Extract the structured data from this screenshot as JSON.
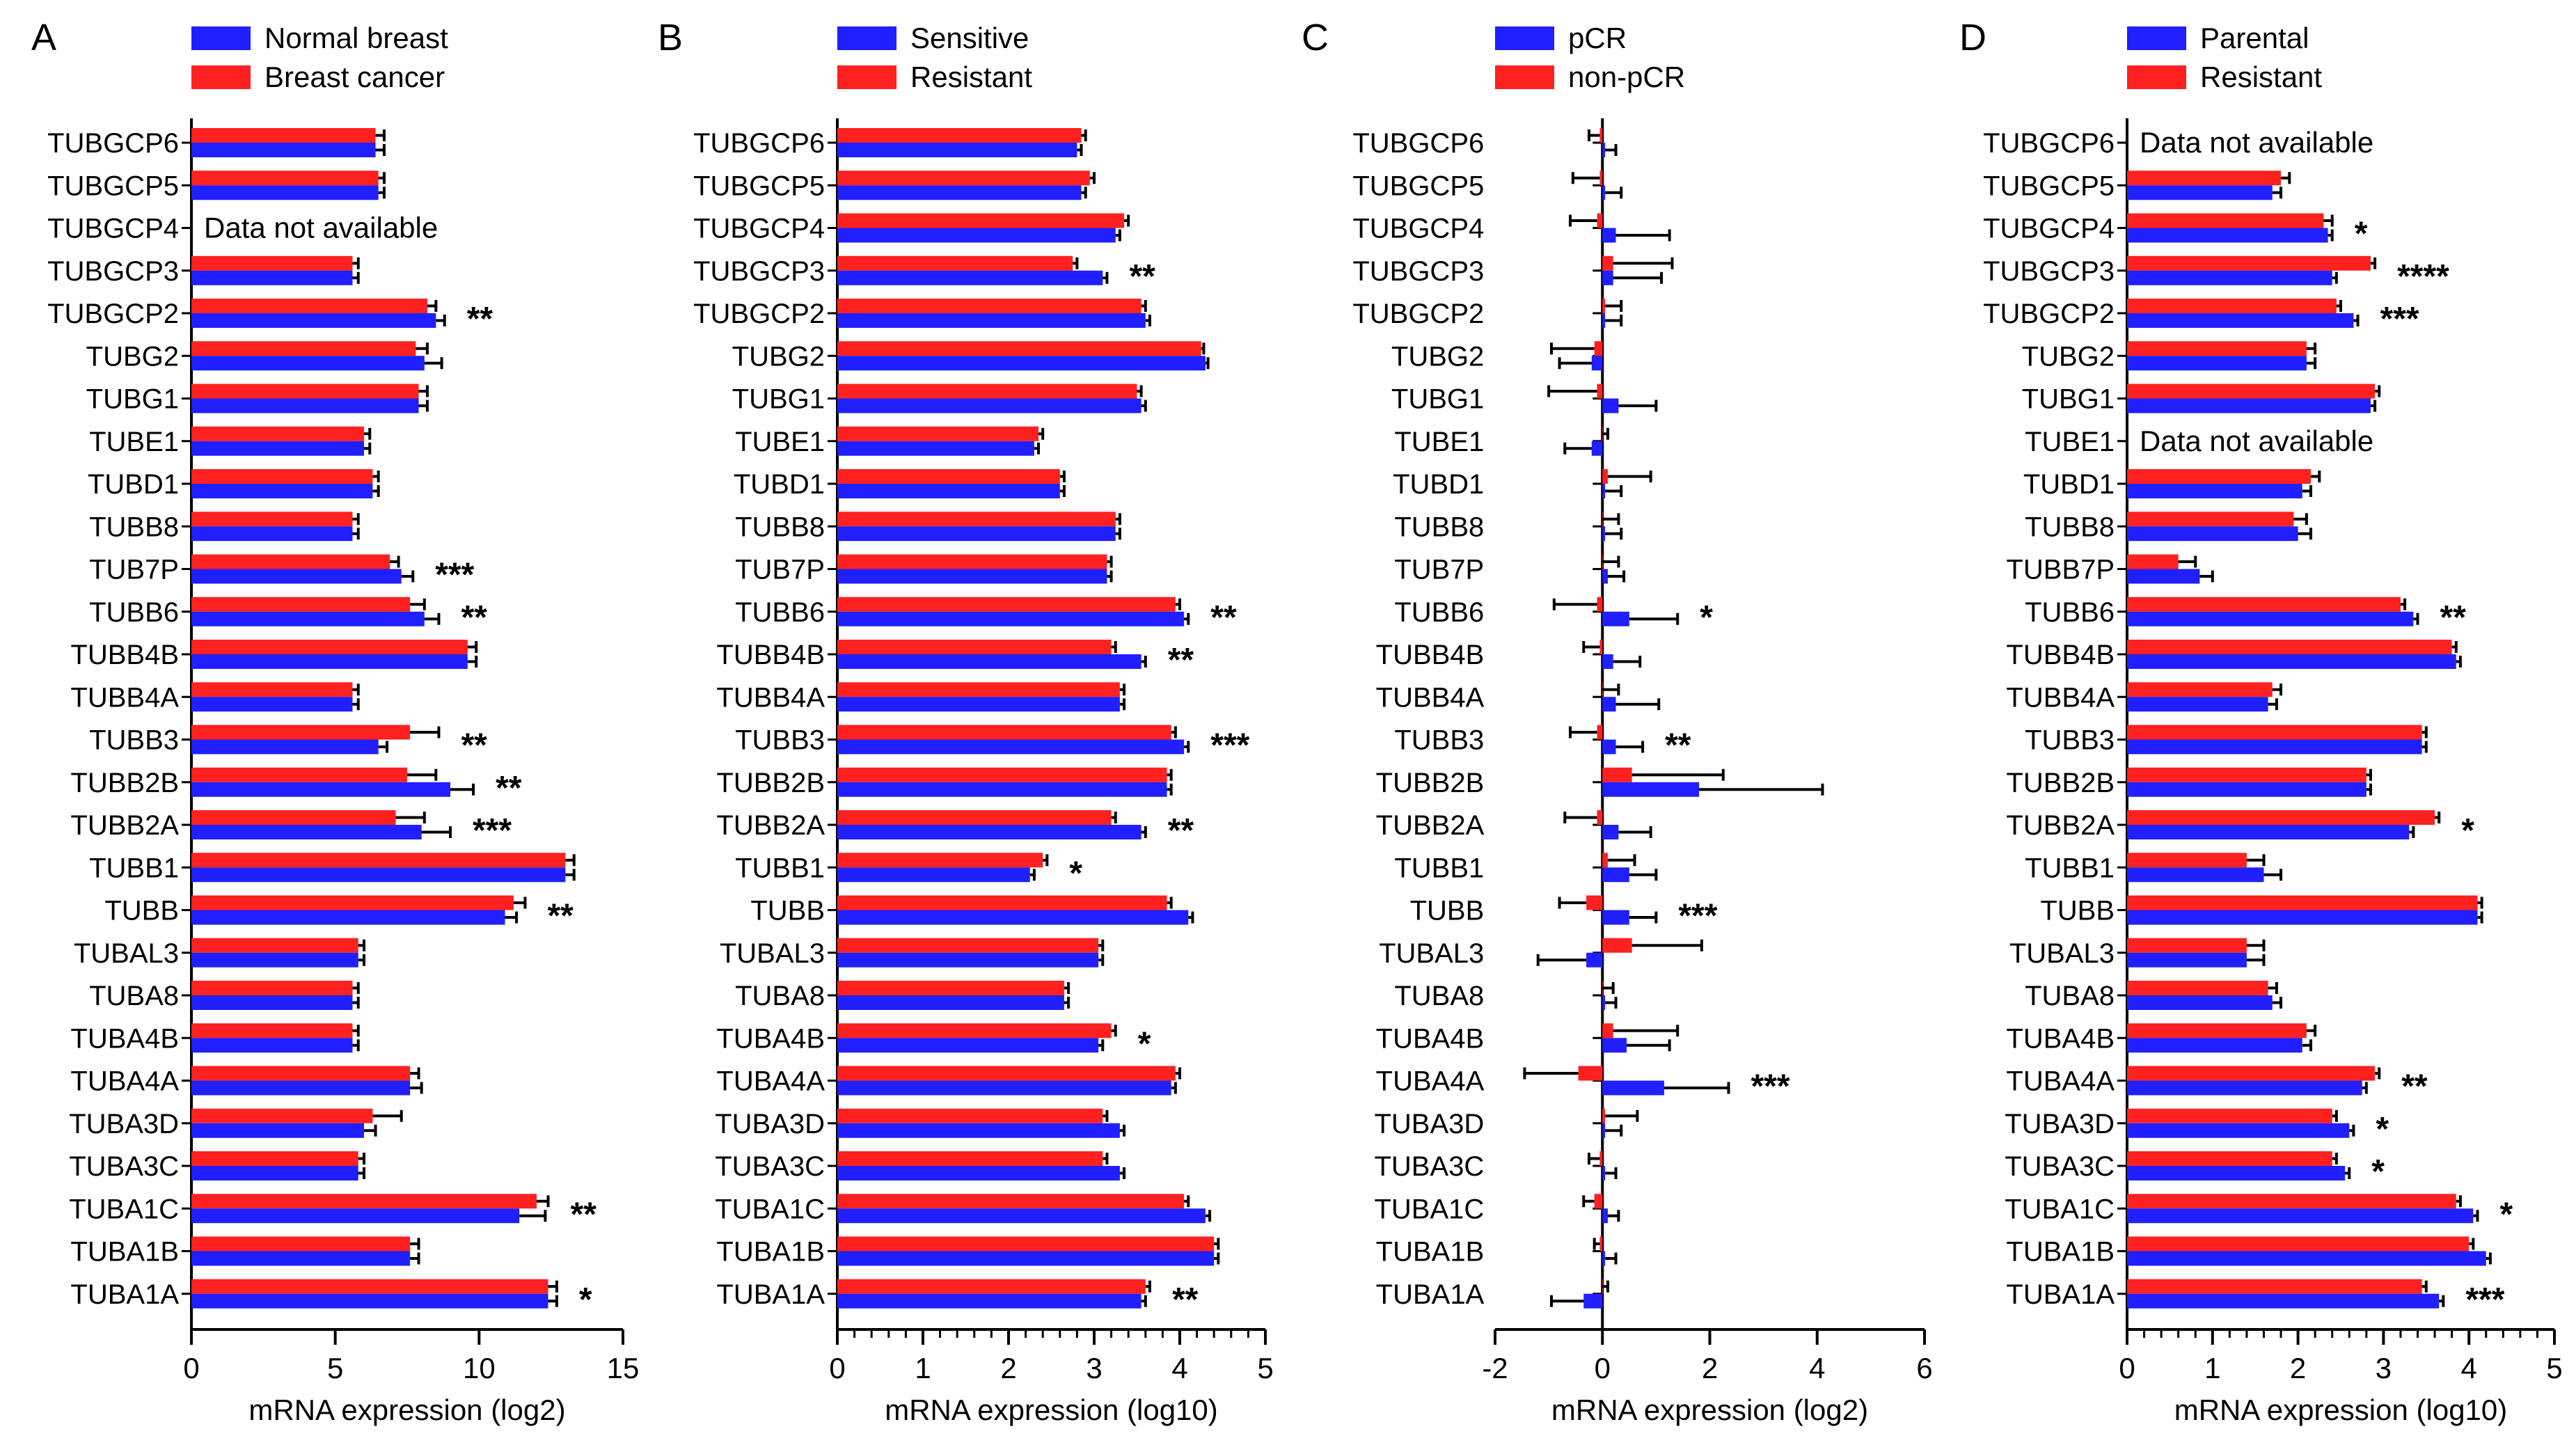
{
  "colors": {
    "blue": "#1F1FFF",
    "red": "#FF2020",
    "axis": "#000000"
  },
  "categories": [
    "TUBGCP6",
    "TUBGCP5",
    "TUBGCP4",
    "TUBGCP3",
    "TUBGCP2",
    "TUBG2",
    "TUBG1",
    "TUBE1",
    "TUBD1",
    "TUBB8",
    "TUB7P",
    "TUBB6",
    "TUBB4B",
    "TUBB4A",
    "TUBB3",
    "TUBB2B",
    "TUBB2A",
    "TUBB1",
    "TUBB",
    "TUBAL3",
    "TUBA8",
    "TUBA4B",
    "TUBA4A",
    "TUBA3D",
    "TUBA3C",
    "TUBA1C",
    "TUBA1B",
    "TUBA1A"
  ],
  "chart_data": [
    {
      "type": "bar",
      "panel": "A",
      "orientation": "horizontal",
      "xlabel": "mRNA expression (log2)",
      "xlim": [
        0,
        15
      ],
      "xticks": [
        0,
        5,
        10,
        15
      ],
      "legend": [
        "Normal breast",
        "Breast cancer"
      ],
      "categories": [
        "TUBGCP6",
        "TUBGCP5",
        "TUBGCP4",
        "TUBGCP3",
        "TUBGCP2",
        "TUBG2",
        "TUBG1",
        "TUBE1",
        "TUBD1",
        "TUBB8",
        "TUB7P",
        "TUBB6",
        "TUBB4B",
        "TUBB4A",
        "TUBB3",
        "TUBB2B",
        "TUBB2A",
        "TUBB1",
        "TUBB",
        "TUBAL3",
        "TUBA8",
        "TUBA4B",
        "TUBA4A",
        "TUBA3D",
        "TUBA3C",
        "TUBA1C",
        "TUBA1B",
        "TUBA1A"
      ],
      "series": [
        {
          "name": "Breast cancer",
          "color": "red",
          "values": [
            6.4,
            6.5,
            null,
            5.6,
            8.2,
            7.8,
            7.9,
            6.0,
            6.3,
            5.6,
            6.9,
            7.6,
            9.6,
            5.6,
            7.6,
            7.5,
            7.1,
            13.0,
            11.2,
            5.8,
            5.6,
            5.6,
            7.6,
            6.3,
            5.8,
            12.0,
            7.6,
            12.4
          ],
          "errors": [
            0.3,
            0.2,
            null,
            0.2,
            0.3,
            0.4,
            0.3,
            0.2,
            0.2,
            0.2,
            0.3,
            0.5,
            0.3,
            0.2,
            1.0,
            1.0,
            1.0,
            0.3,
            0.4,
            0.2,
            0.2,
            0.2,
            0.3,
            1.0,
            0.2,
            0.4,
            0.3,
            0.3
          ]
        },
        {
          "name": "Normal breast",
          "color": "blue",
          "values": [
            6.4,
            6.5,
            null,
            5.6,
            8.5,
            8.1,
            7.9,
            6.0,
            6.3,
            5.6,
            7.3,
            8.1,
            9.6,
            5.6,
            6.5,
            9.0,
            8.0,
            13.0,
            10.9,
            5.8,
            5.6,
            5.6,
            7.6,
            6.0,
            5.8,
            11.4,
            7.6,
            12.4
          ],
          "errors": [
            0.3,
            0.2,
            null,
            0.2,
            0.3,
            0.6,
            0.3,
            0.2,
            0.2,
            0.2,
            0.4,
            0.5,
            0.3,
            0.2,
            0.3,
            0.8,
            1.0,
            0.3,
            0.4,
            0.2,
            0.2,
            0.2,
            0.4,
            0.4,
            0.2,
            0.9,
            0.3,
            0.3
          ]
        }
      ],
      "significance": [
        "",
        "",
        "",
        "",
        "**",
        "",
        "",
        "",
        "",
        "",
        "***",
        "**",
        "",
        "",
        "**",
        "**",
        "***",
        "",
        "**",
        "",
        "",
        "",
        "",
        "",
        "",
        "**",
        "",
        "*"
      ],
      "notes": [
        {
          "category": "TUBGCP4",
          "text": "Data not available"
        }
      ]
    },
    {
      "type": "bar",
      "panel": "B",
      "orientation": "horizontal",
      "xlabel": "mRNA expression (log10)",
      "xlim": [
        0,
        5
      ],
      "xticks": [
        0,
        1,
        2,
        3,
        4,
        5
      ],
      "legend": [
        "Sensitive",
        "Resistant"
      ],
      "categories": [
        "TUBGCP6",
        "TUBGCP5",
        "TUBGCP4",
        "TUBGCP3",
        "TUBGCP2",
        "TUBG2",
        "TUBG1",
        "TUBE1",
        "TUBD1",
        "TUBB8",
        "TUB7P",
        "TUBB6",
        "TUBB4B",
        "TUBB4A",
        "TUBB3",
        "TUBB2B",
        "TUBB2A",
        "TUBB1",
        "TUBB",
        "TUBAL3",
        "TUBA8",
        "TUBA4B",
        "TUBA4A",
        "TUBA3D",
        "TUBA3C",
        "TUBA1C",
        "TUBA1B",
        "TUBA1A"
      ],
      "series": [
        {
          "name": "Resistant",
          "color": "red",
          "values": [
            2.85,
            2.95,
            3.35,
            2.75,
            3.55,
            4.25,
            3.5,
            2.35,
            2.6,
            3.25,
            3.15,
            3.95,
            3.2,
            3.3,
            3.9,
            3.85,
            3.2,
            2.4,
            3.85,
            3.05,
            2.65,
            3.2,
            3.95,
            3.1,
            3.1,
            4.05,
            4.4,
            3.6
          ],
          "errors": [
            0.05,
            0.05,
            0.05,
            0.05,
            0.05,
            0.03,
            0.05,
            0.05,
            0.05,
            0.05,
            0.05,
            0.05,
            0.05,
            0.05,
            0.05,
            0.05,
            0.05,
            0.05,
            0.05,
            0.05,
            0.05,
            0.05,
            0.05,
            0.05,
            0.05,
            0.05,
            0.05,
            0.05
          ]
        },
        {
          "name": "Sensitive",
          "color": "blue",
          "values": [
            2.8,
            2.85,
            3.25,
            3.1,
            3.6,
            4.3,
            3.55,
            2.3,
            2.6,
            3.25,
            3.15,
            4.05,
            3.55,
            3.3,
            4.05,
            3.85,
            3.55,
            2.25,
            4.1,
            3.05,
            2.65,
            3.05,
            3.9,
            3.3,
            3.3,
            4.3,
            4.4,
            3.55
          ],
          "errors": [
            0.05,
            0.05,
            0.05,
            0.05,
            0.05,
            0.03,
            0.05,
            0.05,
            0.05,
            0.05,
            0.05,
            0.05,
            0.05,
            0.05,
            0.05,
            0.05,
            0.05,
            0.05,
            0.05,
            0.05,
            0.05,
            0.05,
            0.05,
            0.05,
            0.05,
            0.05,
            0.05,
            0.05
          ]
        }
      ],
      "significance": [
        "",
        "",
        "",
        "**",
        "",
        "",
        "",
        "",
        "",
        "",
        "",
        "**",
        "**",
        "",
        "***",
        "",
        "**",
        "*",
        "",
        "",
        "",
        "*",
        "",
        "",
        "",
        "",
        "",
        "**"
      ],
      "notes": []
    },
    {
      "type": "bar",
      "panel": "C",
      "orientation": "horizontal",
      "xlabel": "mRNA expression (log2)",
      "xlim": [
        -2,
        6
      ],
      "xticks": [
        -2,
        0,
        2,
        4,
        6
      ],
      "legend": [
        "pCR",
        "non-pCR"
      ],
      "categories": [
        "TUBGCP6",
        "TUBGCP5",
        "TUBGCP4",
        "TUBGCP3",
        "TUBGCP2",
        "TUBG2",
        "TUBG1",
        "TUBE1",
        "TUBD1",
        "TUBB8",
        "TUB7P",
        "TUBB6",
        "TUBB4B",
        "TUBB4A",
        "TUBB3",
        "TUBB2B",
        "TUBB2A",
        "TUBB1",
        "TUBB",
        "TUBAL3",
        "TUBA8",
        "TUBA4B",
        "TUBA4A",
        "TUBA3D",
        "TUBA3C",
        "TUBA1C",
        "TUBA1B",
        "TUBA1A"
      ],
      "series": [
        {
          "name": "non-pCR",
          "color": "red",
          "values": [
            -0.05,
            -0.05,
            -0.1,
            0.2,
            0.05,
            -0.15,
            -0.1,
            0.0,
            0.1,
            0.0,
            0.0,
            -0.1,
            -0.05,
            0.0,
            -0.1,
            0.55,
            -0.1,
            0.1,
            -0.3,
            0.55,
            0.0,
            0.2,
            -0.45,
            0.05,
            -0.05,
            -0.15,
            -0.05,
            0.0
          ],
          "errors": [
            0.2,
            0.5,
            0.5,
            1.1,
            0.3,
            0.8,
            0.9,
            0.1,
            0.8,
            0.3,
            0.3,
            0.8,
            0.3,
            0.3,
            0.5,
            1.7,
            0.6,
            0.5,
            0.5,
            1.3,
            0.2,
            1.2,
            1.0,
            0.6,
            0.2,
            0.2,
            0.1,
            0.1
          ]
        },
        {
          "name": "pCR",
          "color": "blue",
          "values": [
            0.05,
            0.05,
            0.25,
            0.2,
            0.05,
            -0.2,
            0.3,
            -0.2,
            0.05,
            0.05,
            0.1,
            0.5,
            0.2,
            0.25,
            0.25,
            1.8,
            0.3,
            0.5,
            0.5,
            -0.3,
            0.05,
            0.45,
            1.15,
            0.05,
            0.05,
            0.1,
            0.05,
            -0.35
          ],
          "errors": [
            0.2,
            0.3,
            1.0,
            0.9,
            0.3,
            0.6,
            0.7,
            0.5,
            0.3,
            0.3,
            0.3,
            0.9,
            0.5,
            0.8,
            0.5,
            2.3,
            0.6,
            0.5,
            0.5,
            0.9,
            0.2,
            0.8,
            1.2,
            0.3,
            0.2,
            0.2,
            0.2,
            0.6
          ]
        }
      ],
      "significance": [
        "",
        "",
        "",
        "",
        "",
        "",
        "",
        "",
        "",
        "",
        "",
        "*",
        "",
        "",
        "**",
        "",
        "",
        "",
        "***",
        "",
        "",
        "",
        "***",
        "",
        "",
        "",
        "",
        ""
      ],
      "notes": []
    },
    {
      "type": "bar",
      "panel": "D",
      "orientation": "horizontal",
      "xlabel": "mRNA expression (log10)",
      "xlim": [
        0,
        5
      ],
      "xticks": [
        0,
        1,
        2,
        3,
        4,
        5
      ],
      "legend": [
        "Parental",
        "Resistant"
      ],
      "categories": [
        "TUBGCP6",
        "TUBGCP5",
        "TUBGCP4",
        "TUBGCP3",
        "TUBGCP2",
        "TUBG2",
        "TUBG1",
        "TUBE1",
        "TUBD1",
        "TUBB8",
        "TUBB7P",
        "TUBB6",
        "TUBB4B",
        "TUBB4A",
        "TUBB3",
        "TUBB2B",
        "TUBB2A",
        "TUBB1",
        "TUBB",
        "TUBAL3",
        "TUBA8",
        "TUBA4B",
        "TUBA4A",
        "TUBA3D",
        "TUBA3C",
        "TUBA1C",
        "TUBA1B",
        "TUBA1A"
      ],
      "series": [
        {
          "name": "Resistant",
          "color": "red",
          "values": [
            null,
            1.8,
            2.3,
            2.85,
            2.45,
            2.1,
            2.9,
            null,
            2.15,
            1.95,
            0.6,
            3.2,
            3.8,
            1.7,
            3.45,
            2.8,
            3.6,
            1.4,
            4.1,
            1.4,
            1.65,
            2.1,
            2.9,
            2.4,
            2.4,
            3.85,
            4.0,
            3.45
          ],
          "errors": [
            null,
            0.1,
            0.1,
            0.05,
            0.05,
            0.1,
            0.05,
            null,
            0.1,
            0.15,
            0.2,
            0.05,
            0.05,
            0.1,
            0.05,
            0.05,
            0.05,
            0.2,
            0.05,
            0.2,
            0.1,
            0.1,
            0.05,
            0.05,
            0.05,
            0.05,
            0.05,
            0.05
          ]
        },
        {
          "name": "Parental",
          "color": "blue",
          "values": [
            null,
            1.7,
            2.35,
            2.4,
            2.65,
            2.1,
            2.85,
            null,
            2.05,
            2.0,
            0.85,
            3.35,
            3.85,
            1.65,
            3.45,
            2.8,
            3.3,
            1.6,
            4.1,
            1.4,
            1.7,
            2.05,
            2.75,
            2.6,
            2.55,
            4.05,
            4.2,
            3.65
          ],
          "errors": [
            null,
            0.1,
            0.05,
            0.05,
            0.05,
            0.1,
            0.05,
            null,
            0.1,
            0.15,
            0.15,
            0.05,
            0.05,
            0.1,
            0.05,
            0.05,
            0.05,
            0.2,
            0.05,
            0.2,
            0.1,
            0.1,
            0.05,
            0.05,
            0.05,
            0.05,
            0.05,
            0.05
          ]
        }
      ],
      "significance": [
        "",
        "",
        "*",
        "****",
        "***",
        "",
        "",
        "",
        "",
        "",
        "",
        "**",
        "",
        "",
        "",
        "",
        "*",
        "",
        "",
        "",
        "",
        "",
        "**",
        "*",
        "*",
        "*",
        "",
        "***"
      ],
      "notes": [
        {
          "category": "TUBGCP6",
          "text": "Data not available"
        },
        {
          "category": "TUBE1",
          "text": "Data not available"
        }
      ]
    }
  ],
  "panels": [
    {
      "label": "A",
      "legend": [
        "Normal breast",
        "Breast cancer"
      ],
      "xlabel": "mRNA expression (log2)"
    },
    {
      "label": "B",
      "legend": [
        "Sensitive",
        "Resistant"
      ],
      "xlabel": "mRNA expression (log10)"
    },
    {
      "label": "C",
      "legend": [
        "pCR",
        "non-pCR"
      ],
      "xlabel": "mRNA expression (log2)"
    },
    {
      "label": "D",
      "legend": [
        "Parental",
        "Resistant"
      ],
      "xlabel": "mRNA expression (log10)"
    }
  ]
}
